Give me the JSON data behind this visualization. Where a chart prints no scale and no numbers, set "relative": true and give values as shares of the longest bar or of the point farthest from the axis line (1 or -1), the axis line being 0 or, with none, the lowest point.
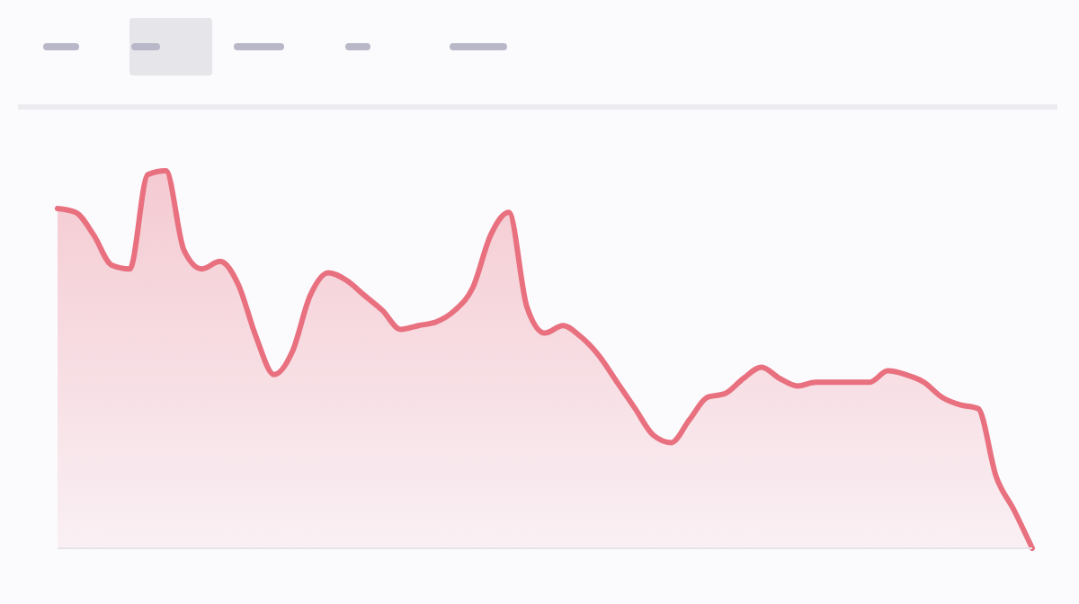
{
  "chart_data": {
    "type": "area",
    "relative": true,
    "categories": [
      null,
      null,
      null,
      null,
      null,
      null,
      null,
      null,
      null,
      null,
      null,
      null,
      null,
      null,
      null,
      null,
      null,
      null,
      null,
      null,
      null,
      null,
      null,
      null,
      null,
      null,
      null,
      null,
      null,
      null,
      null,
      null,
      null,
      null,
      null,
      null,
      null,
      null,
      null,
      null,
      null,
      null,
      null,
      null,
      null,
      null,
      null,
      null,
      null,
      null,
      null,
      null,
      null,
      null,
      null
    ],
    "series": [
      {
        "color": "#e8707f",
        "values": [
          0.9,
          0.89,
          0.83,
          0.75,
          0.74,
          0.99,
          1,
          0.79,
          0.74,
          0.76,
          0.7,
          0.56,
          0.46,
          0.52,
          0.67,
          0.73,
          0.71,
          0.67,
          0.63,
          0.58,
          0.59,
          0.6,
          0.63,
          0.69,
          0.83,
          0.89,
          0.64,
          0.57,
          0.59,
          0.56,
          0.51,
          0.44,
          0.37,
          0.3,
          0.28,
          0.34,
          0.4,
          0.41,
          0.45,
          0.48,
          0.45,
          0.43,
          0.44,
          0.44,
          0.44,
          0.44,
          0.47,
          0.46,
          0.44,
          0.4,
          0.38,
          0.37,
          0.19,
          0.1,
          0
        ]
      }
    ]
  }
}
